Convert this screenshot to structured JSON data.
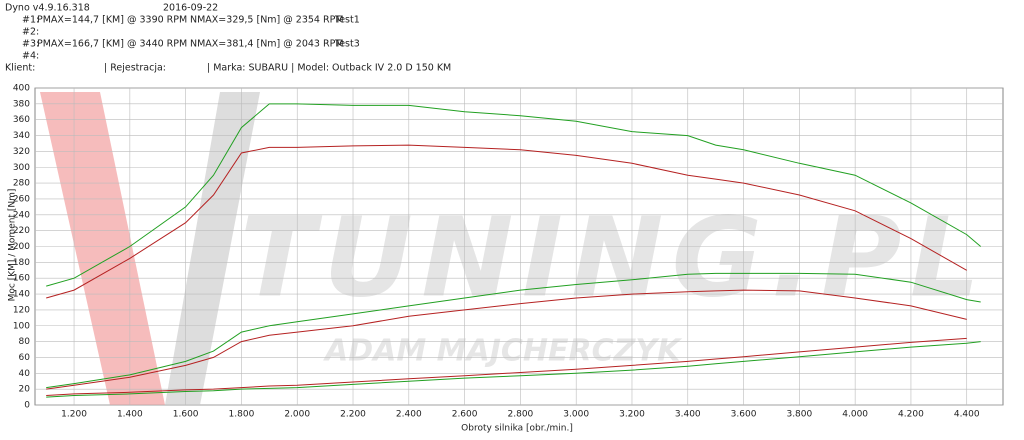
{
  "header": {
    "app": "Dyno v4.9.16.318",
    "date": "2016-09-22",
    "runs": [
      {
        "id": "#1:",
        "pmax": "PMAX=144,7 [KM] @ 3390 RPM",
        "nmax": "NMAX=329,5 [Nm] @ 2354 RPM",
        "name": "Test1"
      },
      {
        "id": "#2:"
      },
      {
        "id": "#3:",
        "pmax": "PMAX=166,7 [KM] @ 3440 RPM",
        "nmax": "NMAX=381,4 [Nm] @ 2043 RPM",
        "name": "Test3"
      },
      {
        "id": "#4:"
      }
    ],
    "client": "Klient:",
    "registration": "| Rejestracja:",
    "vehicle": "| Marka: SUBARU | Model: Outback IV 2.0 D 150 KM"
  },
  "chart_data": {
    "type": "line",
    "ylabel": "Moc [KM] / Moment [Nm]",
    "xlabel": "Obroty silnika [obr./min.]",
    "watermark": [
      "TUNING.PL",
      "ADAM MAJCHERCZYK"
    ],
    "grid": true,
    "xlim": [
      1060,
      4530
    ],
    "ylim": [
      0,
      400
    ],
    "xticks": [
      {
        "value": 1200,
        "label": "1.200"
      },
      {
        "value": 1400,
        "label": "1.400"
      },
      {
        "value": 1600,
        "label": "1.600"
      },
      {
        "value": 1800,
        "label": "1.800"
      },
      {
        "value": 2000,
        "label": "2.000"
      },
      {
        "value": 2200,
        "label": "2.200"
      },
      {
        "value": 2400,
        "label": "2.400"
      },
      {
        "value": 2600,
        "label": "2.600"
      },
      {
        "value": 2800,
        "label": "2.800"
      },
      {
        "value": 3000,
        "label": "3.000"
      },
      {
        "value": 3200,
        "label": "3.200"
      },
      {
        "value": 3400,
        "label": "3.400"
      },
      {
        "value": 3600,
        "label": "3.600"
      },
      {
        "value": 3800,
        "label": "3.800"
      },
      {
        "value": 4000,
        "label": "4.000"
      },
      {
        "value": 4200,
        "label": "4.200"
      },
      {
        "value": 4400,
        "label": "4.400"
      }
    ],
    "yticks": [
      0,
      20,
      40,
      60,
      80,
      100,
      120,
      140,
      160,
      180,
      200,
      220,
      240,
      260,
      280,
      300,
      320,
      340,
      360,
      380,
      400
    ],
    "x": [
      1100,
      1200,
      1400,
      1600,
      1700,
      1800,
      1900,
      2000,
      2200,
      2400,
      2600,
      2800,
      3000,
      3200,
      3400,
      3500,
      3600,
      3800,
      4000,
      4200,
      4400,
      4450
    ],
    "series": [
      {
        "color": "#b52222",
        "values": [
          135,
          145,
          185,
          230,
          265,
          318,
          325,
          325,
          327,
          328,
          325,
          322,
          315,
          305,
          290,
          285,
          280,
          265,
          245,
          210,
          170,
          null
        ]
      },
      {
        "color": "#22a022",
        "values": [
          150,
          160,
          200,
          250,
          290,
          350,
          380,
          380,
          378,
          378,
          370,
          365,
          358,
          345,
          340,
          328,
          322,
          305,
          290,
          255,
          215,
          200
        ]
      },
      {
        "color": "#b52222",
        "values": [
          20,
          25,
          35,
          50,
          60,
          80,
          88,
          92,
          100,
          112,
          120,
          128,
          135,
          140,
          143,
          144,
          145,
          144,
          135,
          125,
          108,
          null
        ]
      },
      {
        "color": "#22a022",
        "values": [
          22,
          27,
          38,
          55,
          68,
          92,
          100,
          105,
          115,
          125,
          135,
          145,
          152,
          158,
          165,
          166,
          166,
          166,
          165,
          155,
          133,
          130
        ]
      },
      {
        "color": "#b52222",
        "values": [
          12,
          14,
          16,
          19,
          20,
          22,
          24,
          25,
          29,
          33,
          37,
          41,
          45,
          50,
          55,
          58,
          61,
          67,
          73,
          79,
          84,
          null
        ]
      },
      {
        "color": "#22a022",
        "values": [
          10,
          12,
          14,
          17,
          18,
          20,
          21,
          22,
          26,
          30,
          34,
          37,
          40,
          44,
          49,
          52,
          55,
          61,
          67,
          73,
          78,
          80
        ]
      }
    ]
  }
}
